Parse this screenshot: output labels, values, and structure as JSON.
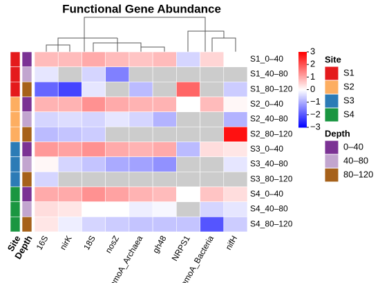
{
  "chart_data": {
    "type": "heatmap",
    "title": "Functional Gene Abundance",
    "columns": [
      "16S",
      "nirK",
      "18S",
      "nosZ",
      "amoA_Archaea",
      "gh48",
      "NRPS1",
      "amoA_Bacteria",
      "nifH"
    ],
    "rows": [
      "S1_0–40",
      "S1_40–80",
      "S1_80–120",
      "S2_0–40",
      "S2_40–80",
      "S2_80–120",
      "S3_0–40",
      "S3_40–80",
      "S3_80–120",
      "S4_0–40",
      "S4_40–80",
      "S4_80–120"
    ],
    "values": [
      [
        0.8,
        0.8,
        1.0,
        0.8,
        0.7,
        0.8,
        -0.5,
        0.5,
        0.0
      ],
      [
        -0.3,
        null,
        -0.5,
        -1.5,
        null,
        null,
        null,
        null,
        null
      ],
      [
        -1.8,
        -2.2,
        -0.3,
        null,
        -0.8,
        null,
        1.8,
        null,
        -0.6
      ],
      [
        0.9,
        0.9,
        1.3,
        1.0,
        0.9,
        0.9,
        0.0,
        0.8,
        0.1
      ],
      [
        -0.5,
        -0.4,
        -0.5,
        -0.3,
        -0.5,
        -0.9,
        null,
        null,
        -0.9
      ],
      [
        -0.8,
        -0.7,
        -0.6,
        null,
        null,
        null,
        null,
        null,
        2.8
      ],
      [
        1.2,
        1.1,
        1.3,
        1.0,
        0.9,
        1.0,
        -0.8,
        0.4,
        0.3
      ],
      [
        0.1,
        -0.5,
        -0.7,
        -1.0,
        -1.1,
        -1.3,
        null,
        null,
        -0.3
      ],
      [
        -0.5,
        null,
        null,
        null,
        null,
        null,
        null,
        null,
        null
      ],
      [
        1.0,
        1.0,
        1.3,
        1.1,
        0.9,
        0.8,
        0.0,
        0.7,
        0.4
      ],
      [
        0.4,
        0.3,
        0.0,
        0.0,
        -0.2,
        -0.1,
        null,
        -0.5,
        -0.3
      ],
      [
        0.3,
        -0.2,
        -0.5,
        -0.6,
        -0.7,
        -0.7,
        -0.7,
        -2.0,
        -0.6
      ]
    ],
    "colors": [
      "#0000ff",
      "#ffffff",
      "#ff0000"
    ],
    "na_color": "#cccccc",
    "zlim": [
      -3,
      3
    ],
    "zticks": [
      3,
      2,
      1,
      0,
      {
        "value": -1,
        "label": "−1"
      },
      {
        "value": -2,
        "label": "−2"
      },
      {
        "value": -3,
        "label": "−3"
      }
    ],
    "annotation_labels": [
      "Site",
      "Depth"
    ],
    "row_annotations": {
      "Site": [
        "S1",
        "S1",
        "S1",
        "S2",
        "S2",
        "S2",
        "S3",
        "S3",
        "S3",
        "S4",
        "S4",
        "S4"
      ],
      "Depth": [
        "0–40",
        "40–80",
        "80–120",
        "0–40",
        "40–80",
        "80–120",
        "0–40",
        "40–80",
        "80–120",
        "0–40",
        "40–80",
        "80–120"
      ]
    },
    "legends": [
      {
        "title": "Site",
        "items": [
          {
            "name": "S1",
            "color": "#e41a1c"
          },
          {
            "name": "S2",
            "color": "#fdae61"
          },
          {
            "name": "S3",
            "color": "#2c7bb6"
          },
          {
            "name": "S4",
            "color": "#1a9641"
          }
        ]
      },
      {
        "title": "Depth",
        "items": [
          {
            "name": "0–40",
            "color": "#7b3294"
          },
          {
            "name": "40–80",
            "color": "#c2a5cf"
          },
          {
            "name": "80–120",
            "color": "#a6611a"
          }
        ]
      }
    ]
  }
}
